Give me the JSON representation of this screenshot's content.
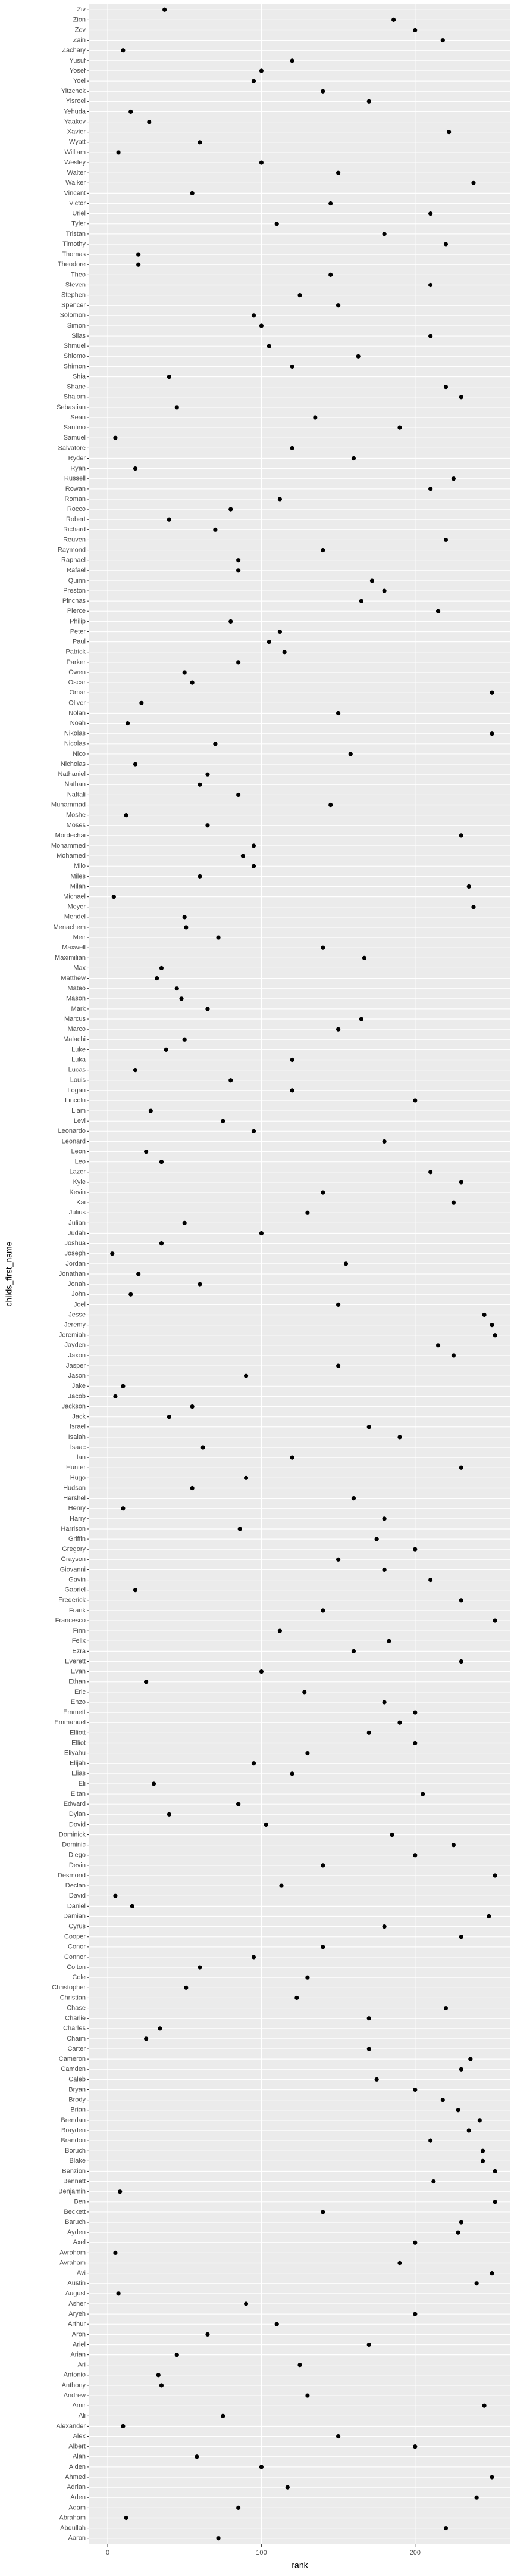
{
  "chart_data": {
    "type": "dotplot",
    "x_label": "rank",
    "y_label": "childs_first_name",
    "categories": [
      "Aaron",
      "Abdullah",
      "Abraham",
      "Adam",
      "Aden",
      "Adrian",
      "Ahmed",
      "Aiden",
      "Alan",
      "Albert",
      "Alex",
      "Alexander",
      "Ali",
      "Amir",
      "Andrew",
      "Anthony",
      "Antonio",
      "Ari",
      "Arian",
      "Ariel",
      "Aron",
      "Arthur",
      "Aryeh",
      "Asher",
      "August",
      "Austin",
      "Avi",
      "Avraham",
      "Avrohom",
      "Axel",
      "Ayden",
      "Baruch",
      "Beckett",
      "Ben",
      "Benjamin",
      "Bennett",
      "Benzion",
      "Blake",
      "Boruch",
      "Brandon",
      "Brayden",
      "Brendan",
      "Brian",
      "Brody",
      "Bryan",
      "Caleb",
      "Camden",
      "Cameron",
      "Carter",
      "Chaim",
      "Charles",
      "Charlie",
      "Chase",
      "Christian",
      "Christopher",
      "Cole",
      "Colton",
      "Connor",
      "Conor",
      "Cooper",
      "Cyrus",
      "Damian",
      "Daniel",
      "David",
      "Declan",
      "Desmond",
      "Devin",
      "Diego",
      "Dominic",
      "Dominick",
      "Dovid",
      "Dylan",
      "Edward",
      "Eitan",
      "Eli",
      "Elias",
      "Elijah",
      "Eliyahu",
      "Elliot",
      "Elliott",
      "Emmanuel",
      "Emmett",
      "Enzo",
      "Eric",
      "Ethan",
      "Evan",
      "Everett",
      "Ezra",
      "Felix",
      "Finn",
      "Francesco",
      "Frank",
      "Frederick",
      "Gabriel",
      "Gavin",
      "Giovanni",
      "Grayson",
      "Gregory",
      "Griffin",
      "Harrison",
      "Harry",
      "Henry",
      "Hershel",
      "Hudson",
      "Hugo",
      "Hunter",
      "Ian",
      "Isaac",
      "Isaiah",
      "Israel",
      "Jack",
      "Jackson",
      "Jacob",
      "Jake",
      "Jason",
      "Jasper",
      "Jaxon",
      "Jayden",
      "Jeremiah",
      "Jeremy",
      "Jesse",
      "Joel",
      "John",
      "Jonah",
      "Jonathan",
      "Jordan",
      "Joseph",
      "Joshua",
      "Judah",
      "Julian",
      "Julius",
      "Kai",
      "Kevin",
      "Kyle",
      "Lazer",
      "Leo",
      "Leon",
      "Leonard",
      "Leonardo",
      "Levi",
      "Liam",
      "Lincoln",
      "Logan",
      "Louis",
      "Lucas",
      "Luka",
      "Luke",
      "Malachi",
      "Marco",
      "Marcus",
      "Mark",
      "Mason",
      "Mateo",
      "Matthew",
      "Max",
      "Maximilian",
      "Maxwell",
      "Meir",
      "Menachem",
      "Mendel",
      "Meyer",
      "Michael",
      "Milan",
      "Miles",
      "Milo",
      "Mohamed",
      "Mohammed",
      "Mordechai",
      "Moses",
      "Moshe",
      "Muhammad",
      "Naftali",
      "Nathan",
      "Nathaniel",
      "Nicholas",
      "Nico",
      "Nicolas",
      "Nikolas",
      "Noah",
      "Nolan",
      "Oliver",
      "Omar",
      "Oscar",
      "Owen",
      "Parker",
      "Patrick",
      "Paul",
      "Peter",
      "Philip",
      "Pierce",
      "Pinchas",
      "Preston",
      "Quinn",
      "Rafael",
      "Raphael",
      "Raymond",
      "Reuven",
      "Richard",
      "Robert",
      "Rocco",
      "Roman",
      "Rowan",
      "Russell",
      "Ryan",
      "Ryder",
      "Salvatore",
      "Samuel",
      "Santino",
      "Sean",
      "Sebastian",
      "Shalom",
      "Shane",
      "Shia",
      "Shimon",
      "Shlomo",
      "Shmuel",
      "Silas",
      "Simon",
      "Solomon",
      "Spencer",
      "Stephen",
      "Steven",
      "Theo",
      "Theodore",
      "Thomas",
      "Timothy",
      "Tristan",
      "Tyler",
      "Uriel",
      "Victor",
      "Vincent",
      "Walker",
      "Walter",
      "Wesley",
      "William",
      "Wyatt",
      "Xavier",
      "Yaakov",
      "Yehuda",
      "Yisroel",
      "Yitzchok",
      "Yoel",
      "Yosef",
      "Yusuf",
      "Zachary",
      "Zain",
      "Zev",
      "Zion",
      "Ziv"
    ],
    "values": [
      72,
      220,
      12,
      85,
      240,
      117,
      250,
      100,
      58,
      200,
      150,
      10,
      75,
      245,
      130,
      35,
      33,
      125,
      45,
      170,
      65,
      110,
      200,
      90,
      7,
      240,
      250,
      190,
      5,
      200,
      228,
      230,
      140,
      252,
      8,
      212,
      252,
      244,
      244,
      210,
      235,
      242,
      228,
      218,
      200,
      175,
      230,
      236,
      170,
      25,
      34,
      170,
      220,
      123,
      51,
      130,
      60,
      95,
      140,
      230,
      180,
      248,
      16,
      5,
      113,
      252,
      140,
      200,
      225,
      185,
      103,
      40,
      85,
      205,
      30,
      120,
      95,
      130,
      200,
      170,
      190,
      200,
      180,
      128,
      25,
      100,
      230,
      160,
      183,
      112,
      252,
      140,
      230,
      18,
      210,
      180,
      150,
      200,
      175,
      86,
      180,
      10,
      160,
      55,
      90,
      230,
      120,
      62,
      190,
      170,
      40,
      55,
      5,
      10,
      90,
      150,
      225,
      215,
      252,
      250,
      245,
      150,
      15,
      60,
      20,
      155,
      3,
      35,
      100,
      50,
      130,
      225,
      140,
      230,
      210,
      35,
      25,
      180,
      95,
      75,
      28,
      200,
      120,
      80,
      18,
      120,
      38,
      50,
      150,
      165,
      65,
      48,
      45,
      32,
      35,
      167,
      140,
      72,
      51,
      50,
      238,
      4,
      235,
      60,
      95,
      88,
      95,
      230,
      65,
      12,
      145,
      85,
      60,
      65,
      18,
      158,
      70,
      250,
      13,
      150,
      22,
      250,
      55,
      50,
      85,
      115,
      105,
      112,
      80,
      215,
      165,
      180,
      172,
      85,
      85,
      140,
      220,
      70,
      40,
      80,
      112,
      210,
      225,
      18,
      160,
      120,
      5,
      190,
      135,
      45,
      230,
      220,
      40,
      120,
      163,
      105,
      210,
      100,
      95,
      150,
      125,
      210,
      145,
      20,
      20,
      220,
      180,
      110,
      210,
      145,
      55,
      238,
      150,
      100,
      7,
      60,
      222,
      27,
      15,
      170,
      140,
      95,
      100,
      120,
      10,
      218,
      200,
      186,
      37
    ],
    "color": "#000000",
    "xlim": [
      -12,
      262
    ],
    "xticks": [
      0,
      100,
      200
    ],
    "grid": true
  }
}
